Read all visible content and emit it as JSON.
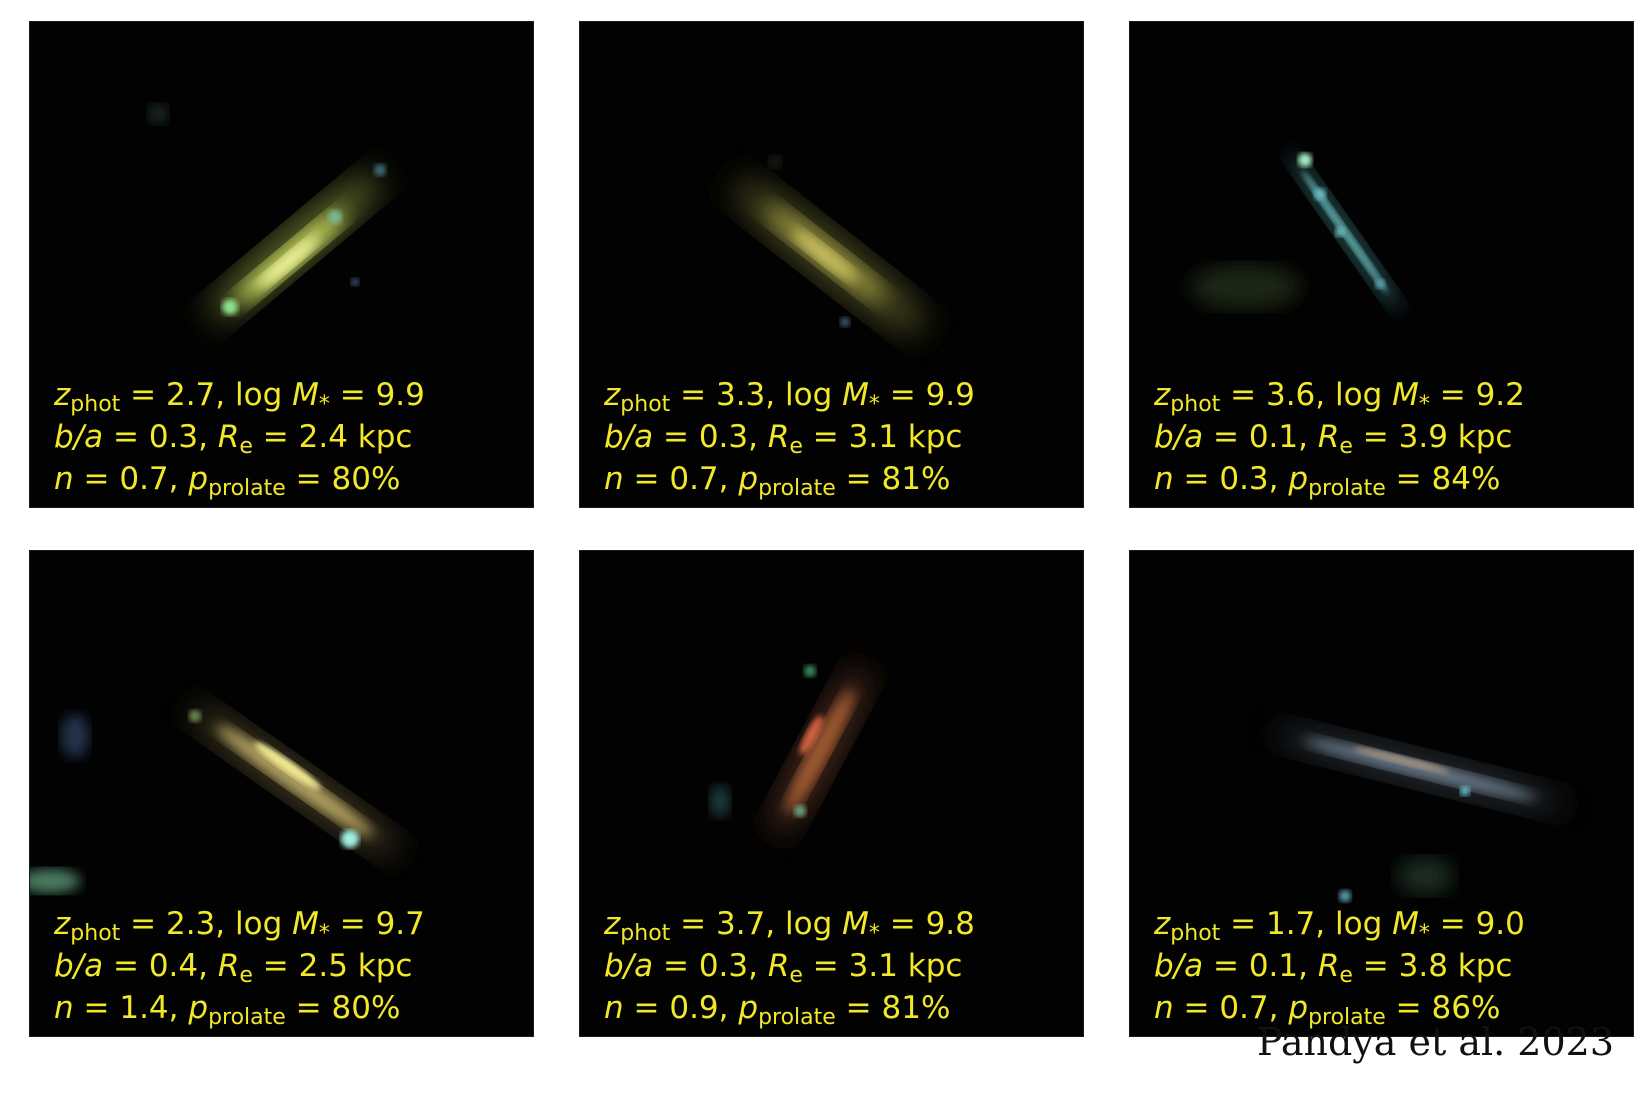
{
  "panels": [
    {
      "z": "2.7",
      "logM": "9.9",
      "ba": "0.3",
      "re": "2.4",
      "n": "0.7",
      "p": "80%"
    },
    {
      "z": "3.3",
      "logM": "9.9",
      "ba": "0.3",
      "re": "3.1",
      "n": "0.7",
      "p": "81%"
    },
    {
      "z": "3.6",
      "logM": "9.2",
      "ba": "0.1",
      "re": "3.9",
      "n": "0.3",
      "p": "84%"
    },
    {
      "z": "2.3",
      "logM": "9.7",
      "ba": "0.4",
      "re": "2.5",
      "n": "1.4",
      "p": "80%"
    },
    {
      "z": "3.7",
      "logM": "9.8",
      "ba": "0.3",
      "re": "3.1",
      "n": "0.9",
      "p": "81%"
    },
    {
      "z": "1.7",
      "logM": "9.0",
      "ba": "0.1",
      "re": "3.8",
      "n": "0.7",
      "p": "86%"
    }
  ],
  "labels": {
    "z": "z",
    "z_sub": "phot",
    "eq": " = ",
    "comma": ", ",
    "log": "log ",
    "m": "M",
    "m_sub": "*",
    "ba": "b/a",
    "re": "R",
    "re_sub": "e",
    "kpc": " kpc",
    "n": "n",
    "p": "p",
    "p_sub": "prolate"
  },
  "credit": "Pandya et al. 2023",
  "colors": {
    "caption": "#f2e82a",
    "panel_bg": "#020202"
  }
}
